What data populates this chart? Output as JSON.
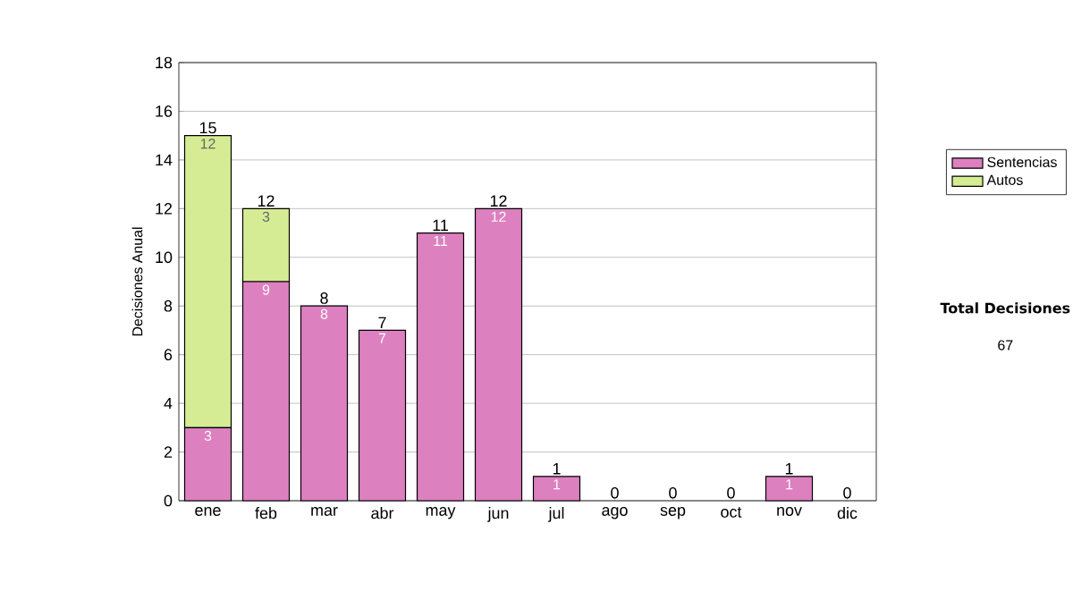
{
  "chart_data": {
    "type": "bar",
    "stacked": true,
    "ylabel": "Decisiones Anual",
    "categories": [
      "ene",
      "feb",
      "mar",
      "abr",
      "may",
      "jun",
      "jul",
      "ago",
      "sep",
      "oct",
      "nov",
      "dic"
    ],
    "series": [
      {
        "name": "Sentencias",
        "color": "#dd80c0",
        "values": [
          3,
          9,
          8,
          7,
          11,
          12,
          1,
          0,
          0,
          0,
          1,
          0
        ],
        "value_labels": [
          "3",
          "9",
          "8",
          "7",
          "11",
          "12",
          "1",
          null,
          null,
          null,
          "1",
          null
        ]
      },
      {
        "name": "Autos",
        "color": "#d6ec94",
        "values": [
          12,
          3,
          0,
          0,
          0,
          0,
          0,
          0,
          0,
          0,
          0,
          0
        ],
        "value_labels": [
          "12",
          "3",
          null,
          null,
          null,
          null,
          null,
          null,
          null,
          null,
          null,
          null
        ]
      }
    ],
    "totals": [
      "15",
      "12",
      "8",
      "7",
      "11",
      "12",
      "1",
      "0",
      "0",
      "0",
      "1",
      "0"
    ],
    "ylim": [
      0,
      18
    ],
    "yticks": [
      0,
      2,
      4,
      6,
      8,
      10,
      12,
      14,
      16,
      18
    ],
    "grid": "y",
    "legend": "right",
    "annotations": [
      "Total Decisiones",
      "67"
    ]
  }
}
